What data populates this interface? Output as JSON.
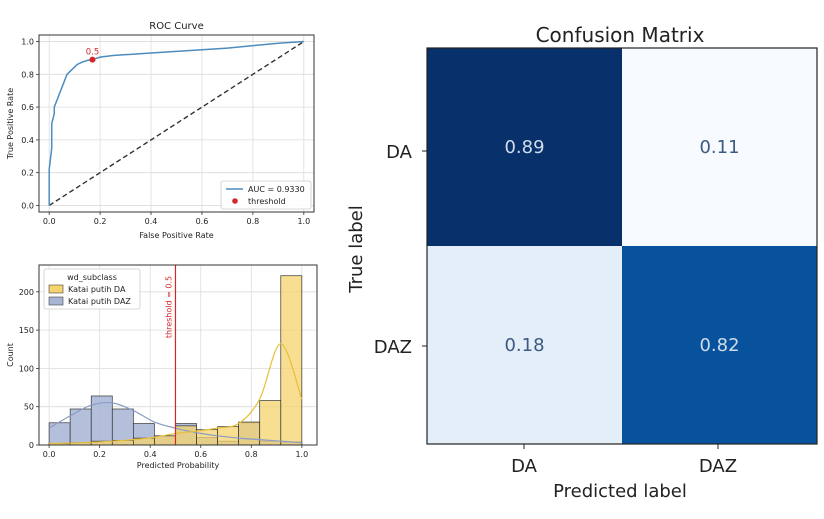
{
  "chart_data": [
    {
      "type": "line",
      "title": "ROC Curve",
      "xlabel": "False Positive Rate",
      "ylabel": "True Positive Rate",
      "xlim": [
        -0.04,
        1.04
      ],
      "ylim": [
        -0.04,
        1.04
      ],
      "xticks": [
        "0.0",
        "0.2",
        "0.4",
        "0.6",
        "0.8",
        "1.0"
      ],
      "yticks": [
        "0.0",
        "0.2",
        "0.4",
        "0.6",
        "0.8",
        "1.0"
      ],
      "grid": true,
      "legend_position": "lower-right",
      "series": [
        {
          "name": "AUC = 0.9330",
          "color": "#4c8cbf",
          "x": [
            0.0,
            0.0,
            0.01,
            0.01,
            0.02,
            0.02,
            0.03,
            0.04,
            0.05,
            0.06,
            0.07,
            0.09,
            0.11,
            0.13,
            0.15,
            0.17,
            0.2,
            0.25,
            0.3,
            0.4,
            0.5,
            0.6,
            0.7,
            0.8,
            0.9,
            1.0
          ],
          "y": [
            0.0,
            0.22,
            0.35,
            0.5,
            0.56,
            0.6,
            0.64,
            0.68,
            0.72,
            0.76,
            0.8,
            0.83,
            0.86,
            0.875,
            0.885,
            0.89,
            0.905,
            0.915,
            0.92,
            0.93,
            0.94,
            0.95,
            0.96,
            0.975,
            0.99,
            1.0
          ]
        }
      ],
      "diagonal": {
        "style": "dashed",
        "color": "#333333",
        "x": [
          0,
          1
        ],
        "y": [
          0,
          1
        ]
      },
      "threshold_point": {
        "name": "threshold",
        "color": "#d62728",
        "x": 0.17,
        "y": 0.89,
        "label": "0.5"
      }
    },
    {
      "type": "bar",
      "subtype": "histogram",
      "xlabel": "Predicted Probability",
      "ylabel": "Count",
      "xlim": [
        -0.04,
        1.06
      ],
      "ylim": [
        0,
        235
      ],
      "xticks": [
        "0.0",
        "0.2",
        "0.4",
        "0.6",
        "0.8",
        "1.0"
      ],
      "yticks": [
        "0",
        "50",
        "100",
        "150",
        "200"
      ],
      "grid": true,
      "legend_title": "wd_subclass",
      "legend_position": "top-left",
      "bin_edges": [
        0.0,
        0.0833,
        0.1667,
        0.25,
        0.3333,
        0.4167,
        0.5,
        0.5833,
        0.6667,
        0.75,
        0.8333,
        0.9167,
        1.0
      ],
      "series": [
        {
          "name": "Katai putih DA",
          "color": "#f6d36c",
          "counts": [
            2,
            3,
            5,
            6,
            9,
            12,
            25,
            20,
            24,
            30,
            58,
            221
          ],
          "kde_y": [
            2,
            2.5,
            3.5,
            5,
            7,
            10,
            15,
            18,
            22,
            28,
            60,
            132,
            60
          ]
        },
        {
          "name": "Katai putih DAZ",
          "color": "#a7b5d5",
          "counts": [
            29,
            47,
            64,
            47,
            28,
            12,
            28,
            10,
            5,
            29,
            5,
            4
          ],
          "kde_y": [
            22,
            38,
            52,
            55,
            45,
            30,
            22,
            16,
            12,
            9,
            7,
            5,
            3
          ]
        }
      ],
      "vline": {
        "x": 0.5,
        "color": "#d62728",
        "label": "threshold = 0.5"
      }
    },
    {
      "type": "heatmap",
      "title": "Confusion Matrix",
      "xlabel": "Predicted label",
      "ylabel": "True label",
      "x_categories": [
        "DA",
        "DAZ"
      ],
      "y_categories": [
        "DA",
        "DAZ"
      ],
      "values": [
        [
          0.89,
          0.11
        ],
        [
          0.18,
          0.82
        ]
      ],
      "labels": [
        [
          "0.89",
          "0.11"
        ],
        [
          "0.18",
          "0.82"
        ]
      ],
      "colors": [
        [
          "#08306b",
          "#f7fbff"
        ],
        [
          "#e3eef9",
          "#08519c"
        ]
      ],
      "label_colors": [
        [
          "#cfdcec",
          "#3c5a82"
        ],
        [
          "#3c5a82",
          "#cfdcec"
        ]
      ]
    }
  ]
}
